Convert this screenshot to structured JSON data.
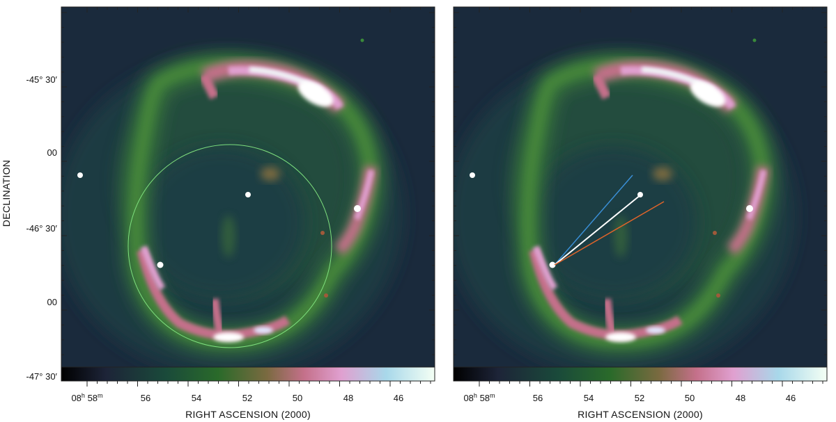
{
  "figure": {
    "y_axis_title": "DECLINATION",
    "x_axis_title": "RIGHT ASCENSION  (2000)",
    "dec_ticks": [
      "-45° 30′",
      "00",
      "-46° 30′",
      "00",
      "-47° 30′"
    ],
    "ra_first_tick": {
      "h": "08",
      "h_unit": "h",
      "m": "58",
      "m_unit": "m"
    },
    "ra_ticks": [
      "56",
      "54",
      "52",
      "50",
      "48",
      "46"
    ]
  },
  "panels": [
    {
      "id": "left",
      "overlay": "circle",
      "circle_color": "#7ee07e"
    },
    {
      "id": "right",
      "overlay": "vectors",
      "vector_colors": [
        "#3a8fd6",
        "#ffffff",
        "#e0642a"
      ]
    }
  ],
  "colormap": [
    "#000000",
    "#1d2438",
    "#1a4a3a",
    "#2a6a2a",
    "#7a6a40",
    "#c4708a",
    "#e0a0d0",
    "#a8d8ea",
    "#f4fff4"
  ]
}
